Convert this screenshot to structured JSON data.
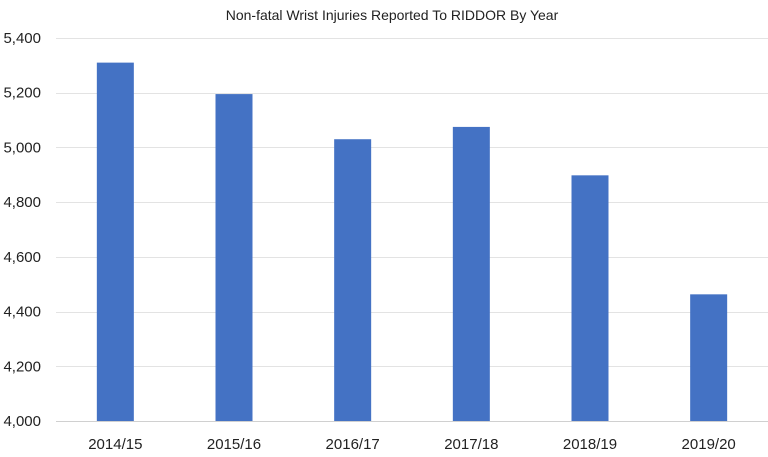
{
  "chart_data": {
    "type": "bar",
    "title": "Non-fatal Wrist Injuries Reported To RIDDOR By Year",
    "xlabel": "",
    "ylabel": "",
    "categories": [
      "2014/15",
      "2015/16",
      "2016/17",
      "2017/18",
      "2018/19",
      "2019/20"
    ],
    "values": [
      5310,
      5195,
      5030,
      5075,
      4898,
      4463
    ],
    "ylim": [
      4000,
      5400
    ],
    "yticks": [
      4000,
      4200,
      4400,
      4600,
      4800,
      5000,
      5200,
      5400
    ],
    "ytick_labels": [
      "4,000",
      "4,200",
      "4,400",
      "4,600",
      "4,800",
      "5,000",
      "5,200",
      "5,400"
    ],
    "grid": true,
    "legend": "none",
    "bar_color": "#4472c4"
  }
}
